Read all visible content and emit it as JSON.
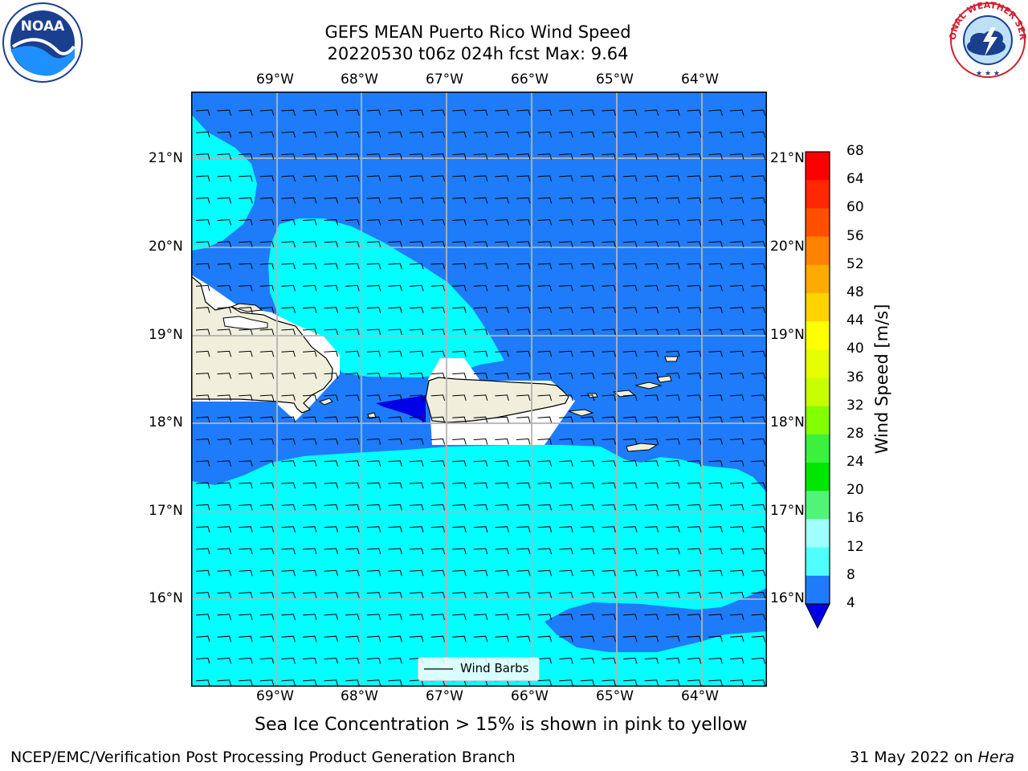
{
  "header": {
    "title_line1": "GEFS MEAN Puerto Rico Wind Speed",
    "title_line2": "20220530 t06z 024h fcst   Max: 9.64"
  },
  "logos": {
    "left": {
      "text": "NOAA",
      "icon": "noaa-logo-icon"
    },
    "right": {
      "text": "NATIONAL WEATHER SERVICE",
      "icon": "nws-logo-icon"
    }
  },
  "map": {
    "lon_labels": [
      "69°W",
      "68°W",
      "67°W",
      "66°W",
      "65°W",
      "64°W"
    ],
    "lat_labels": [
      "21°N",
      "20°N",
      "19°N",
      "18°N",
      "17°N",
      "16°N"
    ],
    "legend_label": "Wind Barbs",
    "colors": {
      "land": "#efefdc",
      "blue": "#1e7cfa",
      "cyan": "#00ffff",
      "darkblue": "#0000e6"
    }
  },
  "colorbar": {
    "title": "Wind Speed [m/s]",
    "ticks": [
      "68",
      "64",
      "60",
      "56",
      "52",
      "48",
      "44",
      "40",
      "36",
      "32",
      "28",
      "24",
      "20",
      "16",
      "12",
      "8",
      "4"
    ],
    "colors": [
      "#ff0000",
      "#ff2800",
      "#ff5000",
      "#ff8200",
      "#ffaa00",
      "#ffd200",
      "#ffff00",
      "#e6ff00",
      "#c8ff00",
      "#82ff00",
      "#3cf03c",
      "#00e600",
      "#50f578",
      "#a0ffff",
      "#50ffff",
      "#00ffff",
      "#1e7cfa"
    ],
    "extend_color": "#0000e6"
  },
  "caption": "Sea Ice Concentration > 15% is shown in pink to yellow",
  "footer": {
    "left": "NCEP/EMC/Verification Post Processing Product Generation Branch",
    "right_date": "31 May 2022 on ",
    "right_machine": "Hera"
  }
}
